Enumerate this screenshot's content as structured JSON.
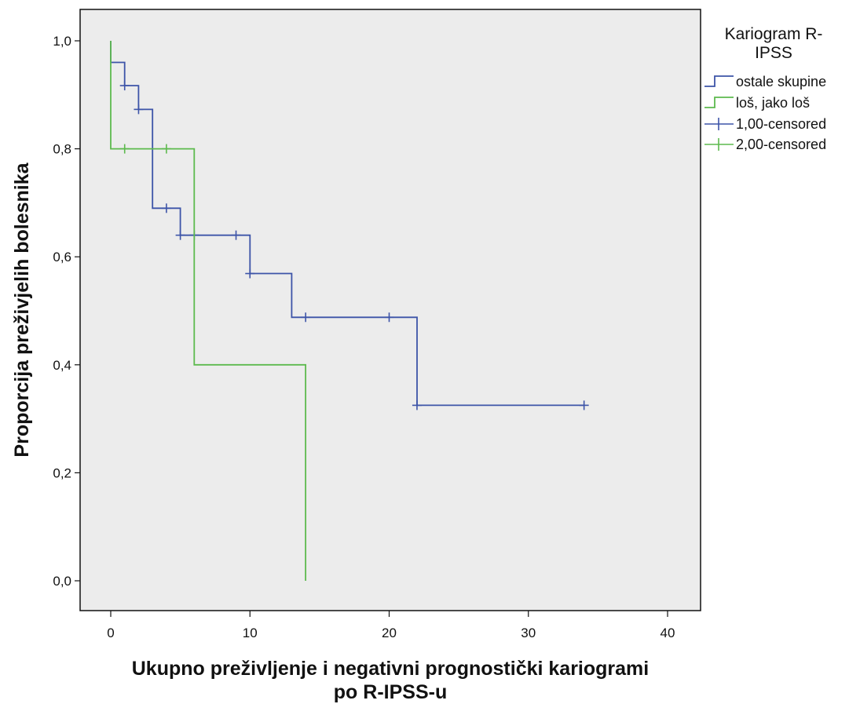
{
  "chart_data": {
    "type": "line",
    "subtype": "kaplan-meier-step",
    "xlabel_lines": [
      "Ukupno preživljenje i negativni prognostički kariogrami",
      "po R-IPSS-u"
    ],
    "ylabel": "Proporcija preživjelih bolesnika",
    "xlim": [
      0,
      40
    ],
    "ylim": [
      0,
      1.0
    ],
    "x_ticks": [
      0,
      10,
      20,
      30,
      40
    ],
    "x_tick_labels": [
      "0",
      "10",
      "20",
      "30",
      "40"
    ],
    "y_ticks": [
      0,
      0.2,
      0.4,
      0.6,
      0.8,
      1.0
    ],
    "y_tick_labels": [
      "0,0",
      "0,2",
      "0,4",
      "0,6",
      "0,8",
      "1,0"
    ],
    "grid": false,
    "legend": {
      "position": "right",
      "title_lines": [
        "Kariogram R-",
        "IPSS"
      ],
      "entries": [
        {
          "label": "ostale skupine",
          "kind": "step",
          "color": "#3d54a8"
        },
        {
          "label": "loš, jako loš",
          "kind": "step",
          "color": "#5dba4e"
        },
        {
          "label": "1,00-censored",
          "kind": "cross",
          "color": "#3d54a8"
        },
        {
          "label": "2,00-censored",
          "kind": "cross",
          "color": "#5dba4e"
        }
      ]
    },
    "series": [
      {
        "name": "ostale skupine",
        "color": "#3d54a8",
        "steps": [
          [
            0,
            1.0
          ],
          [
            0,
            0.96
          ],
          [
            1,
            0.96
          ],
          [
            1,
            0.917
          ],
          [
            2,
            0.917
          ],
          [
            2,
            0.873
          ],
          [
            3,
            0.873
          ],
          [
            3,
            0.69
          ],
          [
            5,
            0.69
          ],
          [
            5,
            0.64
          ],
          [
            10,
            0.64
          ],
          [
            10,
            0.569
          ],
          [
            13,
            0.569
          ],
          [
            13,
            0.488
          ],
          [
            22,
            0.488
          ],
          [
            22,
            0.325
          ],
          [
            34,
            0.325
          ]
        ],
        "censored": [
          [
            1,
            0.917
          ],
          [
            2,
            0.873
          ],
          [
            4,
            0.69
          ],
          [
            5,
            0.64
          ],
          [
            6,
            0.64
          ],
          [
            9,
            0.64
          ],
          [
            10,
            0.569
          ],
          [
            14,
            0.488
          ],
          [
            20,
            0.488
          ],
          [
            22,
            0.325
          ],
          [
            34,
            0.325
          ]
        ]
      },
      {
        "name": "loš, jako loš",
        "color": "#5dba4e",
        "steps": [
          [
            0,
            1.0
          ],
          [
            0,
            0.8
          ],
          [
            6,
            0.8
          ],
          [
            6,
            0.4
          ],
          [
            14,
            0.4
          ],
          [
            14,
            0.0
          ]
        ],
        "censored": [
          [
            1,
            0.8
          ],
          [
            4,
            0.8
          ]
        ]
      }
    ]
  },
  "colors": {
    "plot_background": "#ececec",
    "axis": "#111111"
  }
}
